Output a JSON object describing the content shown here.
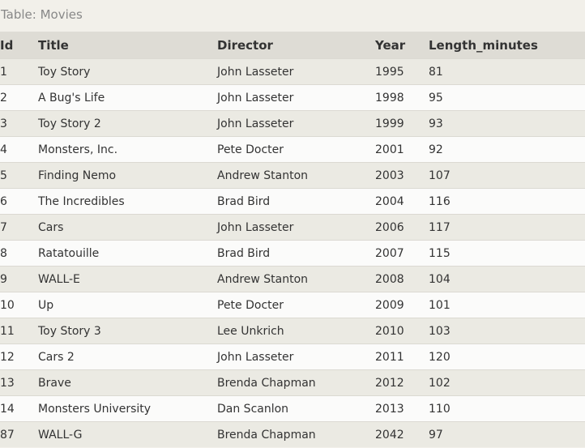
{
  "caption": "Table: Movies",
  "columns": [
    "Id",
    "Title",
    "Director",
    "Year",
    "Length_minutes"
  ],
  "rows": [
    [
      "1",
      "Toy Story",
      "John Lasseter",
      "1995",
      "81"
    ],
    [
      "2",
      "A Bug's Life",
      "John Lasseter",
      "1998",
      "95"
    ],
    [
      "3",
      "Toy Story 2",
      "John Lasseter",
      "1999",
      "93"
    ],
    [
      "4",
      "Monsters, Inc.",
      "Pete Docter",
      "2001",
      "92"
    ],
    [
      "5",
      "Finding Nemo",
      "Andrew Stanton",
      "2003",
      "107"
    ],
    [
      "6",
      "The Incredibles",
      "Brad Bird",
      "2004",
      "116"
    ],
    [
      "7",
      "Cars",
      "John Lasseter",
      "2006",
      "117"
    ],
    [
      "8",
      "Ratatouille",
      "Brad Bird",
      "2007",
      "115"
    ],
    [
      "9",
      "WALL-E",
      "Andrew Stanton",
      "2008",
      "104"
    ],
    [
      "10",
      "Up",
      "Pete Docter",
      "2009",
      "101"
    ],
    [
      "11",
      "Toy Story 3",
      "Lee Unkrich",
      "2010",
      "103"
    ],
    [
      "12",
      "Cars 2",
      "John Lasseter",
      "2011",
      "120"
    ],
    [
      "13",
      "Brave",
      "Brenda Chapman",
      "2012",
      "102"
    ],
    [
      "14",
      "Monsters University",
      "Dan Scanlon",
      "2013",
      "110"
    ],
    [
      "87",
      "WALL-G",
      "Brenda Chapman",
      "2042",
      "97"
    ]
  ]
}
